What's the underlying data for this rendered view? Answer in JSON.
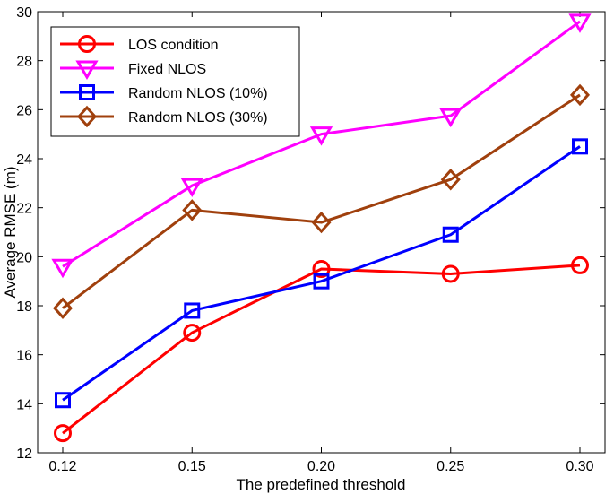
{
  "chart_data": {
    "type": "line",
    "title": "",
    "xlabel": "The predefined threshold",
    "ylabel": "Average RMSE (m)",
    "categories": [
      "0.12",
      "0.15",
      "0.20",
      "0.25",
      "0.30"
    ],
    "ylim": [
      12,
      30
    ],
    "yticks": [
      12,
      14,
      16,
      18,
      20,
      22,
      24,
      26,
      28,
      30
    ],
    "ytick_labels": [
      "12",
      "14",
      "16",
      "18",
      "20",
      "22",
      "24",
      "26",
      "28",
      "30"
    ],
    "grid": false,
    "legend_position": "top-left",
    "series": [
      {
        "name": "LOS condition",
        "marker": "circle",
        "color": "#ff0000",
        "values": [
          12.8,
          16.9,
          19.5,
          19.3,
          19.65
        ]
      },
      {
        "name": "Fixed NLOS",
        "marker": "triangle-down",
        "color": "#ff00ff",
        "values": [
          19.6,
          22.9,
          25.0,
          25.75,
          29.6
        ]
      },
      {
        "name": "Random NLOS (10%)",
        "marker": "square",
        "color": "#0000ff",
        "values": [
          14.15,
          17.8,
          19.0,
          20.9,
          24.5
        ]
      },
      {
        "name": "Random NLOS (30%)",
        "marker": "diamond",
        "color": "#a0400d",
        "values": [
          17.9,
          21.9,
          21.4,
          23.15,
          26.6
        ]
      }
    ]
  }
}
